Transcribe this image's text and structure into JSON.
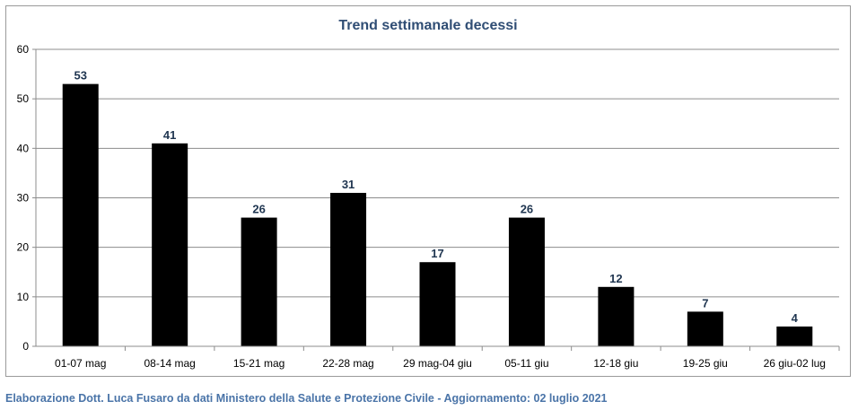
{
  "chart_data": {
    "type": "bar",
    "title": "Trend settimanale decessi",
    "categories": [
      "01-07 mag",
      "08-14 mag",
      "15-21 mag",
      "22-28 mag",
      "29 mag-04 giu",
      "05-11 giu",
      "12-18 giu",
      "19-25 giu",
      "26 giu-02 lug"
    ],
    "values": [
      53,
      41,
      26,
      31,
      17,
      26,
      12,
      7,
      4
    ],
    "xlabel": "",
    "ylabel": "",
    "ylim": [
      0,
      60
    ],
    "yticks": [
      0,
      10,
      20,
      30,
      40,
      50,
      60
    ],
    "grid": true,
    "legend": "none",
    "bar_color": "#000000",
    "label_color": "#1f3550"
  },
  "footer": {
    "note": "Elaborazione Dott. Luca Fusaro da dati Ministero della Salute e Protezione Civile - Aggiornamento: 02 luglio 2021"
  }
}
